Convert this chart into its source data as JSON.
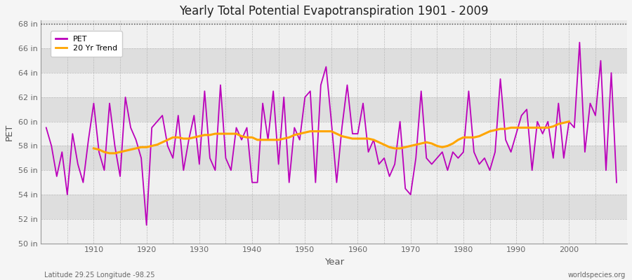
{
  "title": "Yearly Total Potential Evapotranspiration 1901 - 2009",
  "xlabel": "Year",
  "ylabel": "PET",
  "footnote_left": "Latitude 29.25 Longitude -98.25",
  "footnote_right": "worldspecies.org",
  "pet_color": "#bb00bb",
  "trend_color": "#ffa500",
  "bg_color": "#e8e8e8",
  "band_color_light": "#f0f0f0",
  "band_color_dark": "#dedede",
  "ylim_min": 50,
  "ylim_max": 68,
  "yticks": [
    50,
    52,
    54,
    56,
    58,
    60,
    62,
    64,
    66,
    68
  ],
  "ytick_labels": [
    "50 in",
    "52 in",
    "54 in",
    "56 in",
    "58 in",
    "60 in",
    "62 in",
    "64 in",
    "66 in",
    "68 in"
  ],
  "years": [
    1901,
    1902,
    1903,
    1904,
    1905,
    1906,
    1907,
    1908,
    1909,
    1910,
    1911,
    1912,
    1913,
    1914,
    1915,
    1916,
    1917,
    1918,
    1919,
    1920,
    1921,
    1922,
    1923,
    1924,
    1925,
    1926,
    1927,
    1928,
    1929,
    1930,
    1931,
    1932,
    1933,
    1934,
    1935,
    1936,
    1937,
    1938,
    1939,
    1940,
    1941,
    1942,
    1943,
    1944,
    1945,
    1946,
    1947,
    1948,
    1949,
    1950,
    1951,
    1952,
    1953,
    1954,
    1955,
    1956,
    1957,
    1958,
    1959,
    1960,
    1961,
    1962,
    1963,
    1964,
    1965,
    1966,
    1967,
    1968,
    1969,
    1970,
    1971,
    1972,
    1973,
    1974,
    1975,
    1976,
    1977,
    1978,
    1979,
    1980,
    1981,
    1982,
    1983,
    1984,
    1985,
    1986,
    1987,
    1988,
    1989,
    1990,
    1991,
    1992,
    1993,
    1994,
    1995,
    1996,
    1997,
    1998,
    1999,
    2000,
    2001,
    2002,
    2003,
    2004,
    2005,
    2006,
    2007,
    2008,
    2009
  ],
  "pet_values": [
    59.5,
    58.0,
    55.5,
    57.5,
    54.0,
    59.0,
    56.5,
    55.0,
    58.5,
    61.5,
    57.5,
    56.0,
    61.5,
    58.0,
    55.5,
    62.0,
    59.5,
    58.5,
    57.0,
    51.5,
    59.5,
    60.0,
    60.5,
    58.0,
    57.0,
    60.5,
    56.0,
    58.5,
    60.5,
    56.5,
    62.5,
    57.0,
    56.0,
    63.0,
    57.0,
    56.0,
    59.5,
    58.5,
    59.5,
    55.0,
    55.0,
    61.5,
    58.5,
    62.5,
    56.5,
    62.0,
    55.0,
    59.5,
    58.5,
    62.0,
    62.5,
    55.0,
    63.0,
    64.5,
    60.0,
    55.0,
    59.5,
    63.0,
    59.0,
    59.0,
    61.5,
    57.5,
    58.5,
    56.5,
    57.0,
    55.5,
    56.5,
    60.0,
    54.5,
    54.0,
    57.0,
    62.5,
    57.0,
    56.5,
    57.0,
    57.5,
    56.0,
    57.5,
    57.0,
    57.5,
    62.5,
    57.5,
    56.5,
    57.0,
    56.0,
    57.5,
    63.5,
    58.5,
    57.5,
    59.0,
    60.5,
    61.0,
    56.0,
    60.0,
    59.0,
    60.0,
    57.0,
    61.5,
    57.0,
    60.0,
    59.5,
    66.5,
    57.5,
    61.5,
    60.5,
    65.0,
    56.0,
    64.0,
    55.0
  ],
  "trend_values": [
    null,
    null,
    null,
    null,
    null,
    null,
    null,
    null,
    null,
    57.8,
    57.7,
    57.5,
    57.4,
    57.4,
    57.5,
    57.6,
    57.7,
    57.8,
    57.9,
    57.9,
    58.0,
    58.1,
    58.3,
    58.5,
    58.7,
    58.7,
    58.6,
    58.6,
    58.7,
    58.8,
    58.9,
    58.9,
    59.0,
    59.0,
    59.0,
    59.0,
    59.0,
    58.8,
    58.7,
    58.7,
    58.5,
    58.5,
    58.5,
    58.5,
    58.5,
    58.6,
    58.7,
    58.9,
    59.0,
    59.1,
    59.2,
    59.2,
    59.2,
    59.2,
    59.2,
    59.0,
    58.8,
    58.7,
    58.6,
    58.6,
    58.6,
    58.6,
    58.5,
    58.3,
    58.1,
    57.9,
    57.8,
    57.8,
    57.9,
    58.0,
    58.1,
    58.2,
    58.3,
    58.2,
    58.0,
    57.9,
    58.0,
    58.2,
    58.5,
    58.7,
    58.7,
    58.7,
    58.8,
    59.0,
    59.2,
    59.3,
    59.4,
    59.4,
    59.5,
    59.5,
    59.5,
    59.5,
    59.5,
    59.5,
    59.5,
    59.5,
    59.6,
    59.8,
    59.9,
    60.0,
    null,
    null,
    null,
    null,
    null,
    null,
    null,
    null,
    null
  ]
}
